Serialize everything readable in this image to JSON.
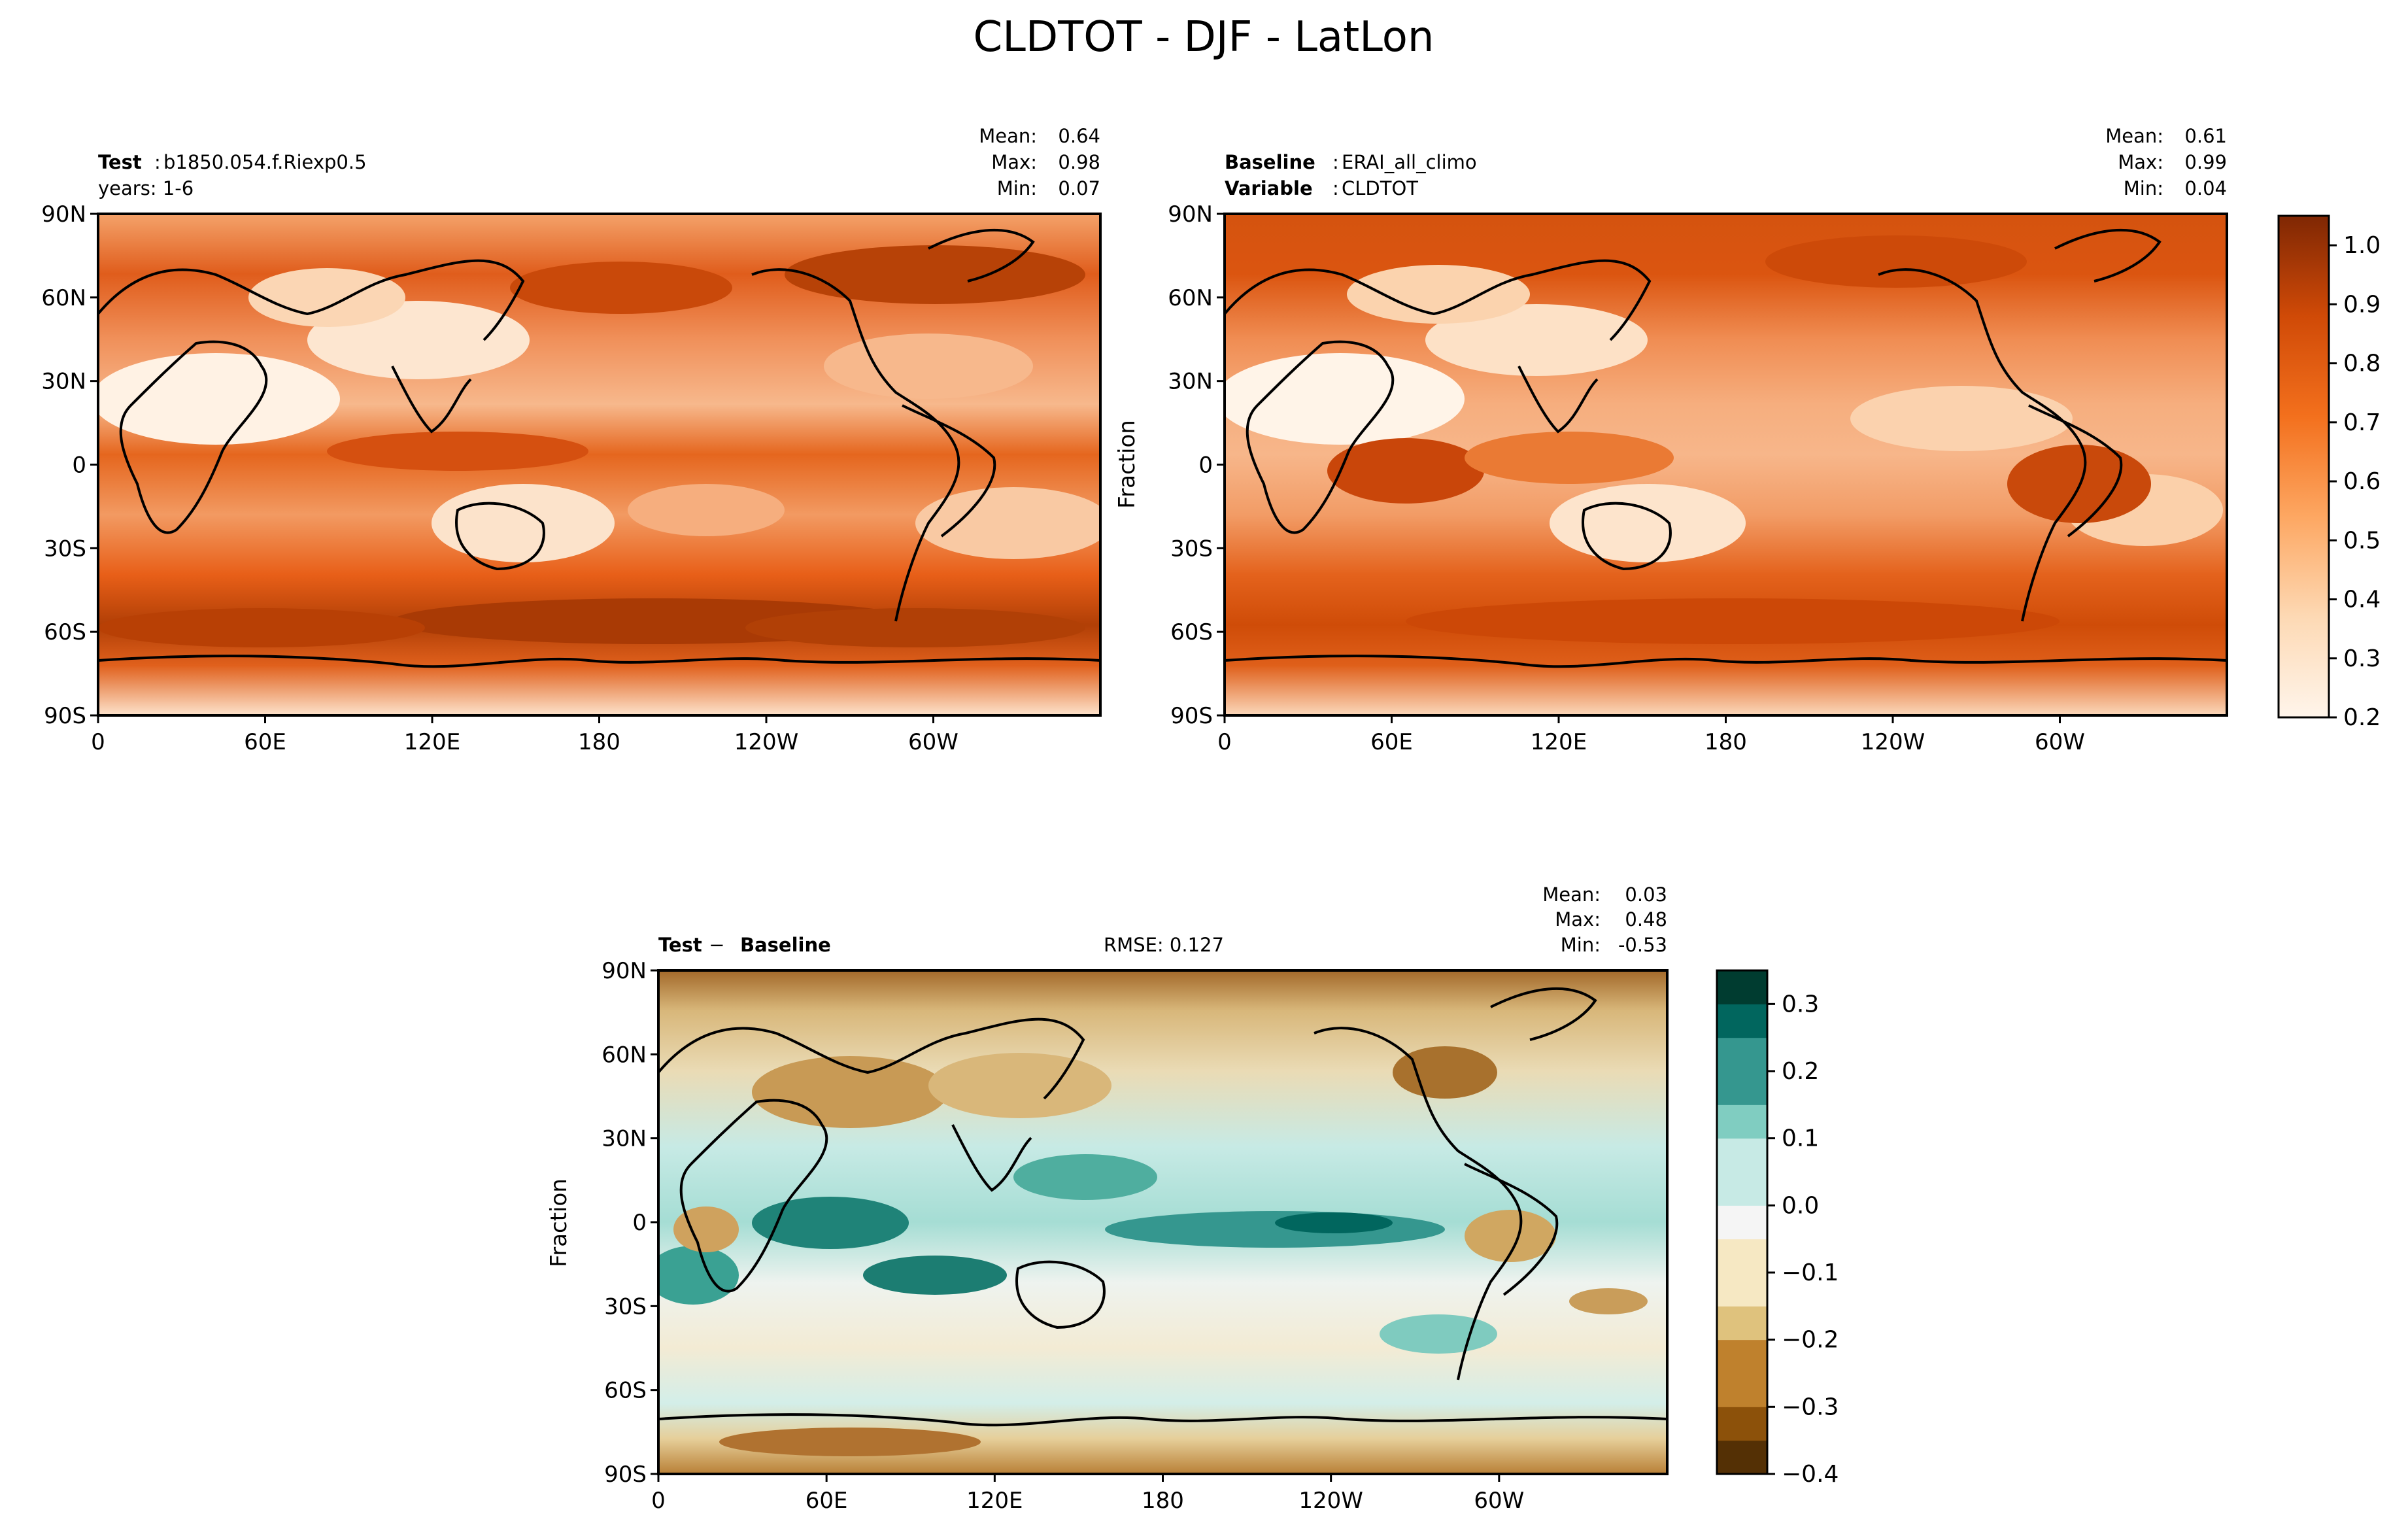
{
  "figure": {
    "title": "CLDTOT - DJF - LatLon"
  },
  "colors": {
    "orange_cmap": [
      "#fff5eb",
      "#fee6ce",
      "#fdd0a2",
      "#fdae6b",
      "#fd8d3c",
      "#f16913",
      "#d94801",
      "#a63603",
      "#7f2704"
    ],
    "diff_cmap": [
      "#543005",
      "#8c510a",
      "#bf812d",
      "#dfc27d",
      "#f6e8c3",
      "#f5f5f5",
      "#c7eae5",
      "#80cdc1",
      "#35978f",
      "#01665e",
      "#003c30"
    ],
    "land_outline": "#000000"
  },
  "chart_data": [
    {
      "type": "heatmap",
      "name": "test",
      "label_bold": "Test",
      "label_text": "b1850.054.f.Riexp0.5",
      "line2": "years: 1-6",
      "stats": {
        "mean_label": "Mean:",
        "mean": "0.64",
        "max_label": "Max:",
        "max": "0.98",
        "min_label": "Min:",
        "min": "0.07"
      },
      "yticks": [
        "90N",
        "60N",
        "30N",
        "0",
        "30S",
        "60S",
        "90S"
      ],
      "xticks": [
        "0",
        "60E",
        "120E",
        "180",
        "120W",
        "60W"
      ],
      "xlim": [
        0,
        360
      ],
      "ylim": [
        -90,
        90
      ]
    },
    {
      "type": "heatmap",
      "name": "baseline",
      "label_bold": "Baseline",
      "label_text": "ERAI_all_climo",
      "label2_bold": "Variable",
      "label2_text": "CLDTOT",
      "stats": {
        "mean_label": "Mean:",
        "mean": "0.61",
        "max_label": "Max:",
        "max": "0.99",
        "min_label": "Min:",
        "min": "0.04"
      },
      "ylabel": "Fraction",
      "yticks": [
        "90N",
        "60N",
        "30N",
        "0",
        "30S",
        "60S",
        "90S"
      ],
      "xticks": [
        "0",
        "60E",
        "120E",
        "180",
        "120W",
        "60W"
      ],
      "xlim": [
        0,
        360
      ],
      "ylim": [
        -90,
        90
      ],
      "colorbar": {
        "ticks": [
          "1.0",
          "0.9",
          "0.8",
          "0.7",
          "0.6",
          "0.5",
          "0.4",
          "0.3",
          "0.2"
        ],
        "range": [
          0.2,
          1.05
        ]
      }
    },
    {
      "type": "heatmap",
      "name": "difference",
      "label_bold": "Test",
      "label_sep": " − ",
      "label_bold2": "Baseline",
      "rmse": "RMSE: 0.127",
      "stats": {
        "mean_label": "Mean:",
        "mean": "0.03",
        "max_label": "Max:",
        "max": "0.48",
        "min_label": "Min:",
        "min": "-0.53"
      },
      "ylabel": "Fraction",
      "yticks": [
        "90N",
        "60N",
        "30N",
        "0",
        "30S",
        "60S",
        "90S"
      ],
      "xticks": [
        "0",
        "60E",
        "120E",
        "180",
        "120W",
        "60W"
      ],
      "xlim": [
        0,
        360
      ],
      "ylim": [
        -90,
        90
      ],
      "colorbar": {
        "ticks": [
          "0.3",
          "0.2",
          "0.1",
          "0.0",
          "−0.1",
          "−0.2",
          "−0.3",
          "−0.4"
        ],
        "range": [
          -0.4,
          0.35
        ]
      }
    }
  ]
}
